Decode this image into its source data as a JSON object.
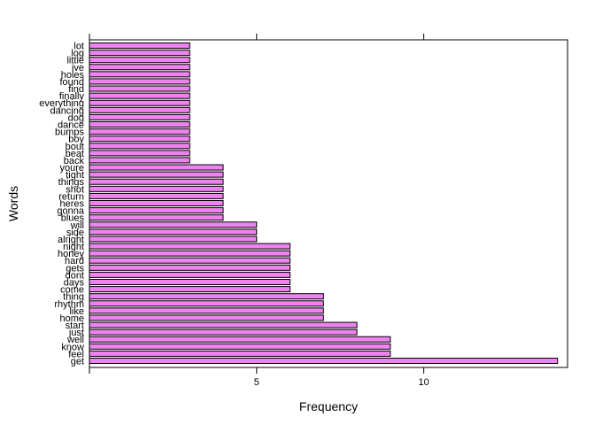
{
  "chart_data": {
    "type": "bar",
    "orientation": "horizontal",
    "xlabel": "Frequency",
    "ylabel": "Words",
    "xlim": [
      0,
      14.3
    ],
    "xticks": [
      5,
      10
    ],
    "grid": false,
    "bar_color": "#ee82ee",
    "categories": [
      "get",
      "feel",
      "know",
      "well",
      "just",
      "start",
      "home",
      "like",
      "rhythm",
      "thing",
      "come",
      "days",
      "dont",
      "gets",
      "hard",
      "honey",
      "night",
      "alright",
      "side",
      "will",
      "blues",
      "gonna",
      "heres",
      "return",
      "shot",
      "things",
      "tight",
      "youre",
      "back",
      "beat",
      "bout",
      "boy",
      "bumps",
      "dance",
      "dog",
      "dancing",
      "everything",
      "finally",
      "find",
      "found",
      "holes",
      "ive",
      "little",
      "log",
      "lot"
    ],
    "values": [
      14,
      9,
      9,
      9,
      8,
      8,
      7,
      7,
      7,
      7,
      6,
      6,
      6,
      6,
      6,
      6,
      6,
      5,
      5,
      5,
      4,
      4,
      4,
      4,
      4,
      4,
      4,
      4,
      3,
      3,
      3,
      3,
      3,
      3,
      3,
      3,
      3,
      3,
      3,
      3,
      3,
      3,
      3,
      3,
      3
    ]
  }
}
